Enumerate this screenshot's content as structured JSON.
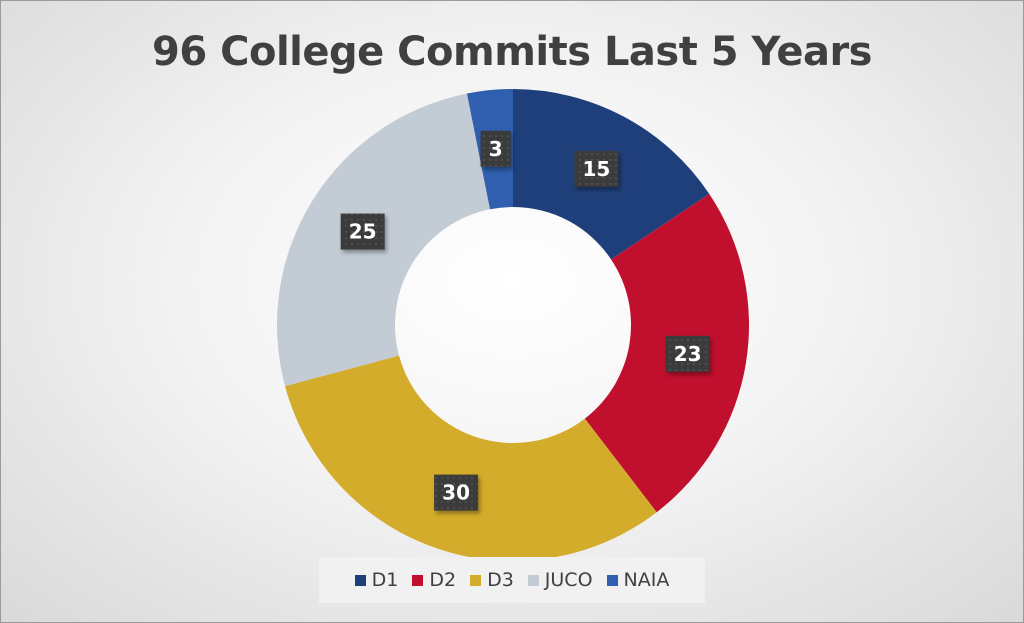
{
  "chart_data": {
    "type": "pie",
    "style": "doughnut",
    "title": "96 College Commits Last 5 Years",
    "categories": [
      "D1",
      "D2",
      "D3",
      "JUCO",
      "NAIA"
    ],
    "values": [
      15,
      23,
      30,
      25,
      3
    ],
    "colors": [
      "#1f3f7a",
      "#c0102e",
      "#d4ac2b",
      "#c3cbd4",
      "#2f5fae"
    ],
    "legend_position": "bottom",
    "data_labels": [
      "15",
      "23",
      "30",
      "25",
      "3"
    ]
  }
}
